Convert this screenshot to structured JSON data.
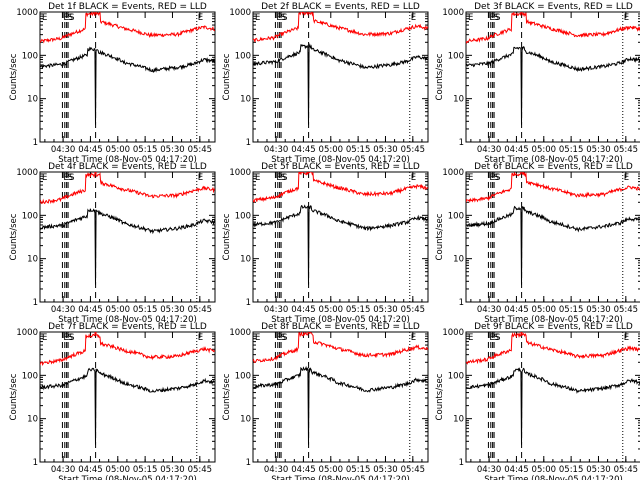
{
  "chart_data": {
    "type": "line",
    "layout": "3x3 grid of panels",
    "ylabel": "Counts/sec",
    "xlabel": "Start Time (08-Nov-05 04:17:20)",
    "y_scale": "log",
    "ylim": [
      1,
      1000
    ],
    "y_ticks": [
      "1",
      "10",
      "100",
      "1000"
    ],
    "x_range_min": [
      0,
      96
    ],
    "x_ticks": [
      {
        "min": 12.67,
        "label": "04:30"
      },
      {
        "min": 27.67,
        "label": "04:45"
      },
      {
        "min": 42.67,
        "label": "05:00"
      },
      {
        "min": 57.67,
        "label": "05:15"
      },
      {
        "min": 72.67,
        "label": "05:30"
      },
      {
        "min": 87.67,
        "label": "05:45"
      }
    ],
    "markers": [
      {
        "min": 12.3,
        "label": "E",
        "style": "dashed"
      },
      {
        "min": 13.6,
        "label": "",
        "style": "dashed"
      },
      {
        "min": 14.6,
        "label": "S",
        "style": "dashed"
      },
      {
        "min": 15.4,
        "label": "S",
        "style": "dashed"
      },
      {
        "min": 30.5,
        "label": "",
        "style": "dashed"
      },
      {
        "min": 86.0,
        "label": "E",
        "style": "dotted"
      }
    ],
    "series_colors": {
      "events": "#000000",
      "lld": "#ff0000"
    },
    "panels": [
      {
        "title": "Det 1f BLACK = Events, RED = LLD",
        "events_level": 1.0,
        "lld_level": 1.0
      },
      {
        "title": "Det 2f BLACK = Events, RED = LLD",
        "events_level": 1.15,
        "lld_level": 1.05
      },
      {
        "title": "Det 3f BLACK = Events, RED = LLD",
        "events_level": 1.05,
        "lld_level": 1.0
      },
      {
        "title": "Det 4f BLACK = Events, RED = LLD",
        "events_level": 0.95,
        "lld_level": 0.95
      },
      {
        "title": "Det 5f BLACK = Events, RED = LLD",
        "events_level": 1.1,
        "lld_level": 1.05
      },
      {
        "title": "Det 6f BLACK = Events, RED = LLD",
        "events_level": 1.05,
        "lld_level": 1.0
      },
      {
        "title": "Det 7f BLACK = Events, RED = LLD",
        "events_level": 0.95,
        "lld_level": 0.9
      },
      {
        "title": "Det 8f BLACK = Events, RED = LLD",
        "events_level": 1.0,
        "lld_level": 1.0
      },
      {
        "title": "Det 9f BLACK = Events, RED = LLD",
        "events_level": 0.95,
        "lld_level": 0.95
      }
    ]
  }
}
